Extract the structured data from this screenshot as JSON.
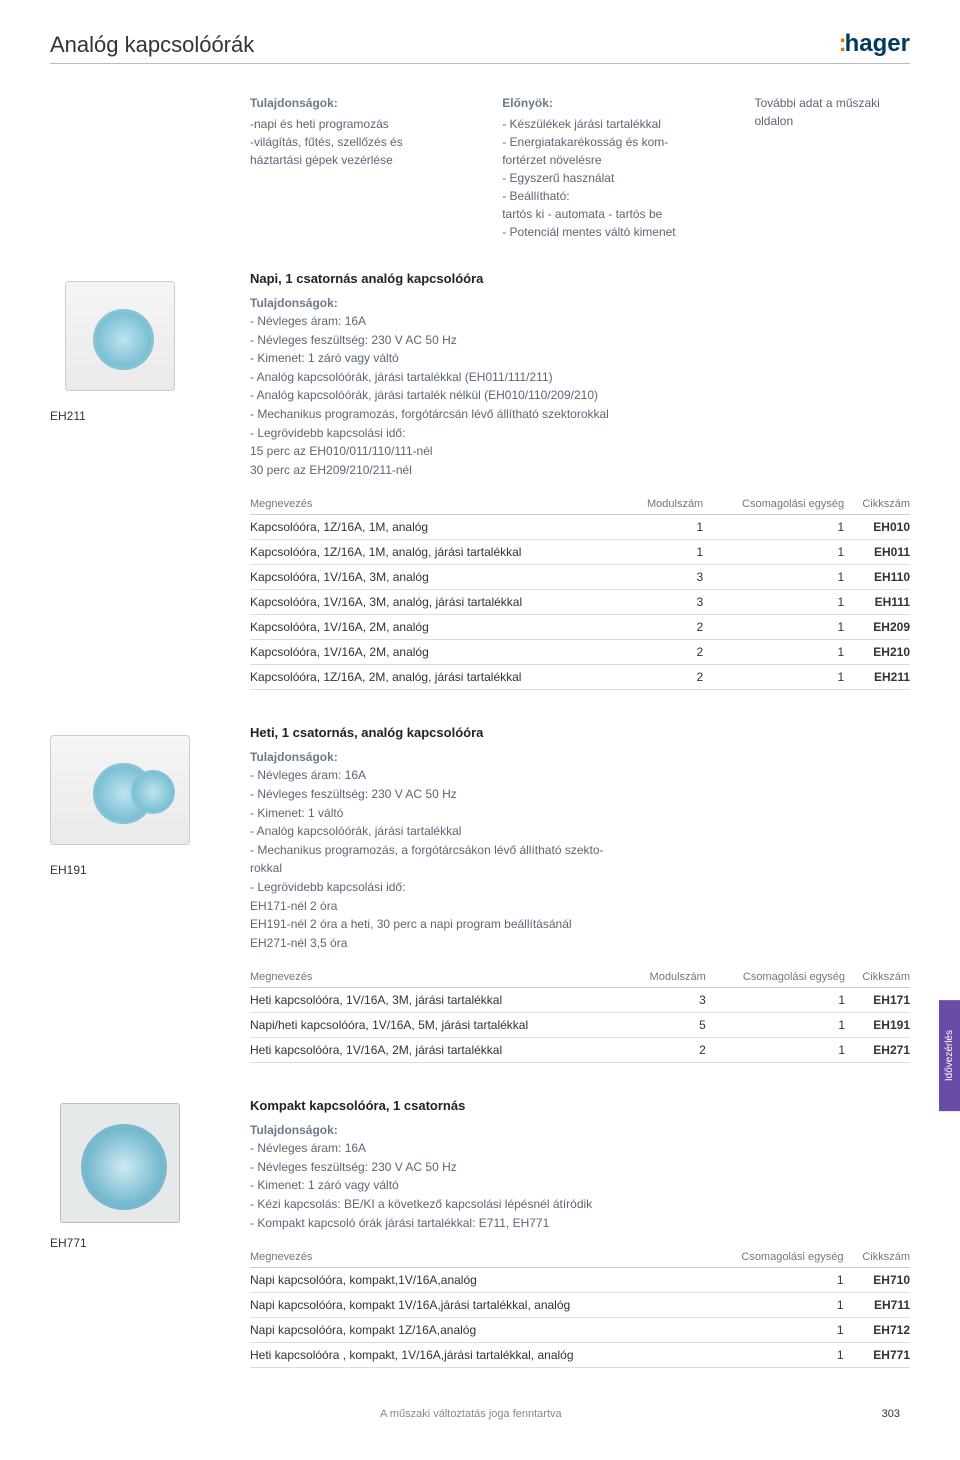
{
  "header": {
    "title": "Analóg kapcsolóórák",
    "brand": "hager"
  },
  "intro": {
    "col1": {
      "h": "Tulajdonságok:",
      "t": "-napi és heti programozás\n-világítás, fűtés, szellőzés és\n háztartási gépek vezérlése"
    },
    "col2": {
      "h": "Előnyök:",
      "t": "- Készülékek járási tartalékkal\n- Energiatakarékosság és kom-\n  fortérzet növelésre\n- Egyszerű használat\n- Beállítható:\n  tartós ki - automata - tartós be\n- Potenciál mentes váltó kimenet"
    },
    "col3": {
      "t": "További adat a műszaki\noldalon"
    }
  },
  "sections": [
    {
      "img_label": "EH211",
      "title": "Napi, 1 csatornás analóg kapcsolóóra",
      "props_h": "Tulajdonságok:",
      "props": "- Névleges áram: 16A\n- Névleges feszültség: 230 V AC 50 Hz\n- Kimenet: 1 záró vagy váltó\n- Analóg kapcsolóórák, járási tartalékkal (EH011/111/211)\n- Analóg kapcsolóórák, járási tartalék nélkül (EH010/110/209/210)\n- Mechanikus programozás, forgótárcsán lévő állítható szektorokkal\n- Legrövidebb kapcsolási idő:\n  15 perc az EH010/011/110/111-nél\n  30 perc az EH209/210/211-nél",
      "cols": [
        "Megnevezés",
        "Modulszám",
        "Csomagolási egység",
        "Cikkszám"
      ],
      "rows": [
        [
          "Kapcsolóóra, 1Z/16A, 1M, analóg",
          "1",
          "1",
          "EH010"
        ],
        [
          "Kapcsolóóra, 1Z/16A, 1M, analóg, járási tartalékkal",
          "1",
          "1",
          "EH011"
        ],
        [
          "Kapcsolóóra, 1V/16A, 3M, analóg",
          "3",
          "1",
          "EH110"
        ],
        [
          "Kapcsolóóra, 1V/16A, 3M, analóg, járási tartalékkal",
          "3",
          "1",
          "EH111"
        ],
        [
          "Kapcsolóóra, 1V/16A, 2M, analóg",
          "2",
          "1",
          "EH209"
        ],
        [
          "Kapcsolóóra, 1V/16A, 2M, analóg",
          "2",
          "1",
          "EH210"
        ],
        [
          "Kapcsolóóra, 1Z/16A, 2M, analóg, járási tartalékkal",
          "2",
          "1",
          "EH211"
        ]
      ]
    },
    {
      "img_label": "EH191",
      "title": "Heti, 1 csatornás, analóg kapcsolóóra",
      "props_h": "Tulajdonságok:",
      "props": "- Névleges áram: 16A\n- Névleges feszültség: 230 V AC 50 Hz\n- Kimenet: 1 váltó\n- Analóg kapcsolóórák, járási tartalékkal\n- Mechanikus programozás, a forgótárcsákon lévő állítható szekto-\n  rokkal\n- Legrövidebb kapcsolási idő:\n  EH171-nél 2 óra\n  EH191-nél 2 óra a heti, 30 perc a napi program beállításánál\n  EH271-nél 3,5 óra",
      "cols": [
        "Megnevezés",
        "Modulszám",
        "Csomagolási egység",
        "Cikkszám"
      ],
      "rows": [
        [
          "Heti kapcsolóóra, 1V/16A, 3M, járási tartalékkal",
          "3",
          "1",
          "EH171"
        ],
        [
          "Napi/heti kapcsolóóra, 1V/16A, 5M, járási tartalékkal",
          "5",
          "1",
          "EH191"
        ],
        [
          "Heti kapcsolóóra, 1V/16A, 2M, járási tartalékkal",
          "2",
          "1",
          "EH271"
        ]
      ]
    },
    {
      "img_label": "EH771",
      "title": "Kompakt kapcsolóóra, 1 csatornás",
      "props_h": "Tulajdonságok:",
      "props": "- Névleges áram: 16A\n- Névleges feszültség: 230 V AC 50 Hz\n- Kimenet: 1 záró vagy váltó\n- Kézi kapcsolás: BE/KI a következő kapcsolási lépésnél átíródik\n- Kompakt kapcsoló órák járási tartalékkal: E711, EH771",
      "cols": [
        "Megnevezés",
        "",
        "Csomagolási egység",
        "Cikkszám"
      ],
      "rows": [
        [
          "Napi kapcsolóóra, kompakt,1V/16A,analóg",
          "",
          "1",
          "EH710"
        ],
        [
          "Napi kapcsolóóra, kompakt 1V/16A,járási tartalékkal, analóg",
          "",
          "1",
          "EH711"
        ],
        [
          "Napi kapcsolóóra, kompakt 1Z/16A,analóg",
          "",
          "1",
          "EH712"
        ],
        [
          "Heti kapcsolóóra , kompakt, 1V/16A,járási tartalékkal, analóg",
          "",
          "1",
          "EH771"
        ]
      ]
    }
  ],
  "side_tab": "Idővezérlés",
  "footer": {
    "note": "A műszaki változtatás joga fenntartva",
    "page": "303"
  }
}
